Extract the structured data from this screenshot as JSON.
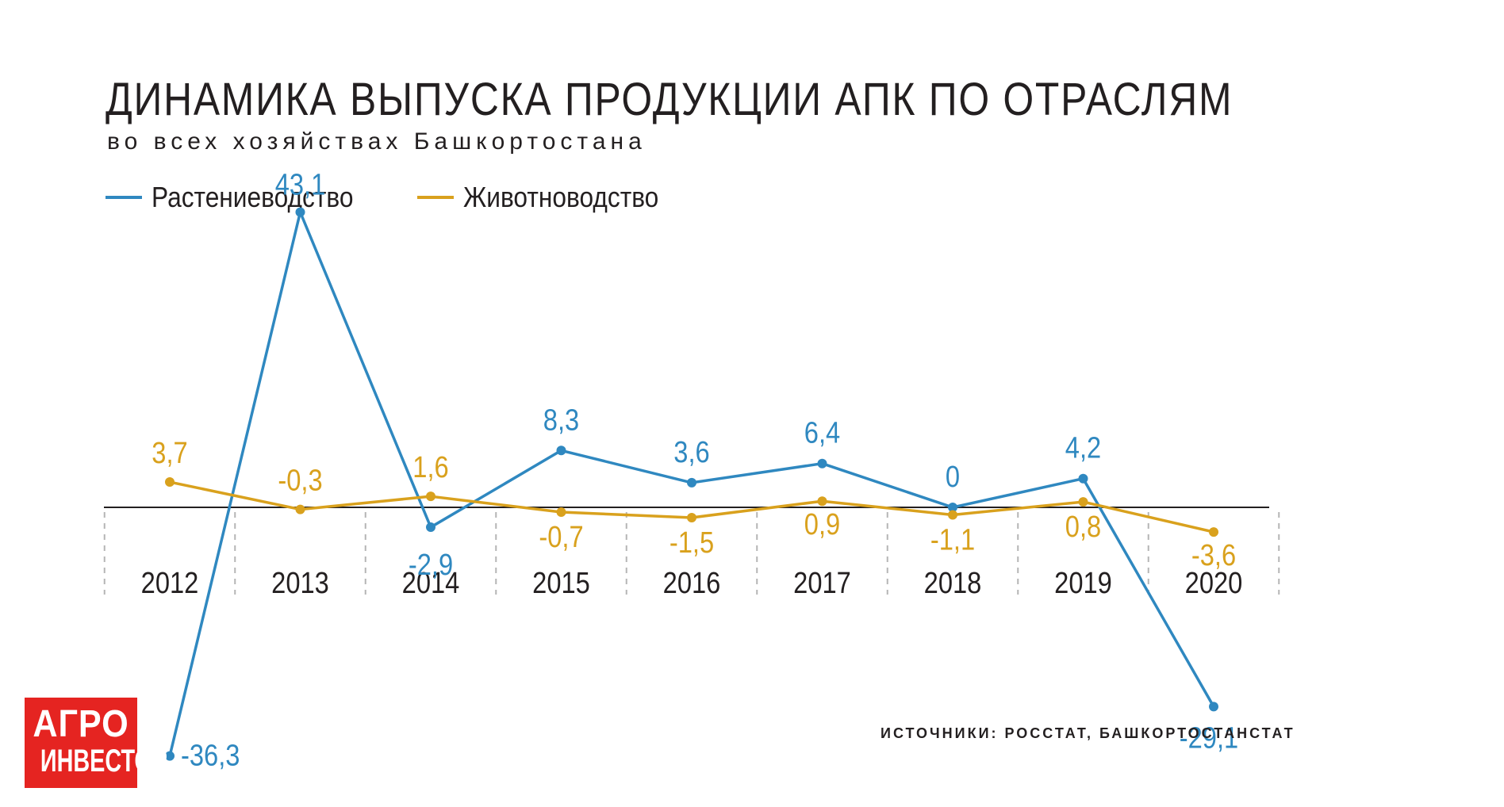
{
  "title": "ДИНАМИКА ВЫПУСКА ПРОДУКЦИИ АПК ПО ОТРАСЛЯМ",
  "subtitle": "во всех хозяйствах Башкортостана",
  "source": "ИСТОЧНИКИ: РОССТАТ, БАШКОРТОСТАНСТАТ",
  "logo": {
    "line1": "АГРО",
    "line2": "ИНВЕСТОР",
    "color": "#e52421"
  },
  "chart_data": {
    "type": "line",
    "title": "ДИНАМИКА ВЫПУСКА ПРОДУКЦИИ АПК ПО ОТРАСЛЯМ",
    "subtitle": "во всех хозяйствах Башкортостана",
    "categories": [
      "2012",
      "2013",
      "2014",
      "2015",
      "2016",
      "2017",
      "2018",
      "2019",
      "2020"
    ],
    "legend_position": "top-left",
    "grid": false,
    "ylim": [
      -36.3,
      43.1
    ],
    "series": [
      {
        "name": "Растениеводство",
        "color": "#2f88c0",
        "values": [
          -36.3,
          43.1,
          -2.9,
          8.3,
          3.6,
          6.4,
          0,
          4.2,
          -29.1
        ],
        "labels": [
          "-36,3",
          "43,1",
          "-2,9",
          "8,3",
          "3,6",
          "6,4",
          "0",
          "4,2",
          "-29,1"
        ]
      },
      {
        "name": "Животноводство",
        "color": "#d9a11d",
        "values": [
          3.7,
          -0.3,
          1.6,
          -0.7,
          -1.5,
          0.9,
          -1.1,
          0.8,
          -3.6
        ],
        "labels": [
          "3,7",
          "-0,3",
          "1,6",
          "-0,7",
          "-1,5",
          "0,9",
          "-1,1",
          "0,8",
          "-3,6"
        ]
      }
    ]
  }
}
